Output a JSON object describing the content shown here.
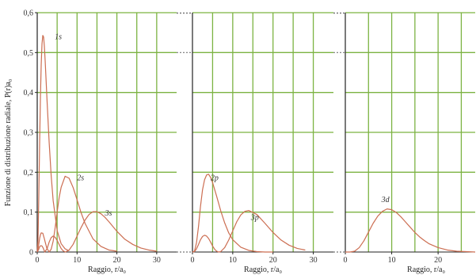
{
  "chart_data": {
    "type": "line",
    "ylabel": "Funzione di distribuzione radiale, P(r)a₀",
    "ylim": [
      0,
      0.6
    ],
    "yticks": [
      "0",
      "0,1",
      "0,2",
      "0,3",
      "0,4",
      "0,5",
      "0,6"
    ],
    "grid": true,
    "colors": {
      "curve": "#cc6e52",
      "grid": "#7cb342",
      "axis": "#222222",
      "dash": "#777777"
    },
    "panels": [
      {
        "xlabel": "Raggio, r/a₀",
        "xlim": [
          0,
          35
        ],
        "xticks": [
          "0",
          "10",
          "20",
          "30"
        ],
        "series": [
          {
            "name": "1s",
            "x": [
              0,
              0.2,
              0.4,
              0.6,
              0.8,
              1,
              1.2,
              1.4,
              1.6,
              1.8,
              2,
              2.5,
              3,
              3.5,
              4,
              5,
              6,
              7,
              8
            ],
            "y": [
              0,
              0.029,
              0.144,
              0.271,
              0.385,
              0.47,
              0.522,
              0.543,
              0.539,
              0.515,
              0.478,
              0.373,
              0.274,
              0.192,
              0.129,
              0.054,
              0.021,
              0.008,
              0.003
            ]
          },
          {
            "name": "2s",
            "x": [
              0,
              0.3,
              0.6,
              0.8,
              1,
              1.4,
              1.8,
              2,
              2.4,
              3,
              3.5,
              4,
              4.5,
              5,
              5.5,
              6,
              7,
              8,
              9,
              10,
              11,
              12,
              14,
              16,
              18,
              20
            ],
            "y": [
              0,
              0.013,
              0.034,
              0.043,
              0.048,
              0.047,
              0.033,
              0.025,
              0.01,
              0,
              0.007,
              0.027,
              0.061,
              0.1,
              0.136,
              0.162,
              0.19,
              0.185,
              0.162,
              0.131,
              0.099,
              0.072,
              0.033,
              0.014,
              0.005,
              0.002
            ]
          },
          {
            "name": "3s",
            "x": [
              0,
              0.3,
              0.6,
              0.9,
              1.2,
              1.5,
              1.9,
              2.5,
              3,
              3.5,
              4,
              4.5,
              5,
              5.5,
              6,
              6.5,
              7.1,
              8,
              9,
              10,
              11,
              12,
              13,
              14,
              15,
              16,
              17,
              18,
              20,
              22,
              24,
              26,
              28,
              30
            ],
            "y": [
              0,
              0.005,
              0.013,
              0.016,
              0.015,
              0.01,
              0,
              0.009,
              0.025,
              0.036,
              0.04,
              0.037,
              0.029,
              0.019,
              0.009,
              0.003,
              0,
              0.005,
              0.019,
              0.04,
              0.061,
              0.08,
              0.094,
              0.101,
              0.101,
              0.096,
              0.087,
              0.076,
              0.052,
              0.032,
              0.019,
              0.01,
              0.005,
              0.002
            ]
          }
        ]
      },
      {
        "xlabel": "Raggio, r/a₀",
        "xlim": [
          0,
          35
        ],
        "xticks": [
          "0",
          "10",
          "20",
          "30"
        ],
        "series": [
          {
            "name": "2p",
            "x": [
              0,
              0.5,
              1,
              1.5,
              2,
              2.5,
              3,
              3.5,
              4,
              4.5,
              5,
              6,
              7,
              8,
              9,
              10,
              12,
              14,
              16,
              18,
              20
            ],
            "y": [
              0,
              0.002,
              0.023,
              0.064,
              0.115,
              0.156,
              0.181,
              0.193,
              0.195,
              0.187,
              0.174,
              0.14,
              0.104,
              0.073,
              0.048,
              0.031,
              0.012,
              0.004,
              0.001,
              0,
              0
            ],
            "label_pos": [
              4.5,
              0.18
            ]
          },
          {
            "name": "3p",
            "x": [
              0,
              0.5,
              1,
              1.5,
              2,
              2.5,
              3,
              3.5,
              4,
              4.5,
              5,
              5.5,
              6,
              6.5,
              7,
              8,
              9,
              10,
              11,
              12,
              13,
              14,
              16,
              18,
              20,
              22,
              24,
              26,
              28
            ],
            "y": [
              0,
              0.001,
              0.008,
              0.019,
              0.031,
              0.039,
              0.042,
              0.04,
              0.034,
              0.025,
              0.015,
              0.007,
              0.002,
              0,
              0.001,
              0.011,
              0.03,
              0.053,
              0.076,
              0.093,
              0.102,
              0.104,
              0.094,
              0.072,
              0.049,
              0.03,
              0.017,
              0.009,
              0.005
            ],
            "label_pos": [
              14.5,
              0.08
            ]
          }
        ]
      },
      {
        "xlabel": "Raggio, r/a₀",
        "xlim": [
          0,
          28
        ],
        "xticks": [
          "0",
          "10",
          "20"
        ],
        "series": [
          {
            "name": "3d",
            "x": [
              0,
              1,
              2,
              3,
              4,
              5,
              6,
              7,
              8,
              9,
              10,
              11,
              12,
              13,
              14,
              15,
              16,
              17,
              18,
              20,
              22,
              24,
              26,
              28
            ],
            "y": [
              0,
              0.0,
              0.002,
              0.011,
              0.028,
              0.05,
              0.072,
              0.09,
              0.102,
              0.108,
              0.106,
              0.099,
              0.088,
              0.075,
              0.062,
              0.049,
              0.038,
              0.029,
              0.021,
              0.011,
              0.005,
              0.002,
              0.001,
              0.0
            ],
            "label_pos": [
              7.8,
              0.125
            ]
          }
        ]
      }
    ]
  }
}
